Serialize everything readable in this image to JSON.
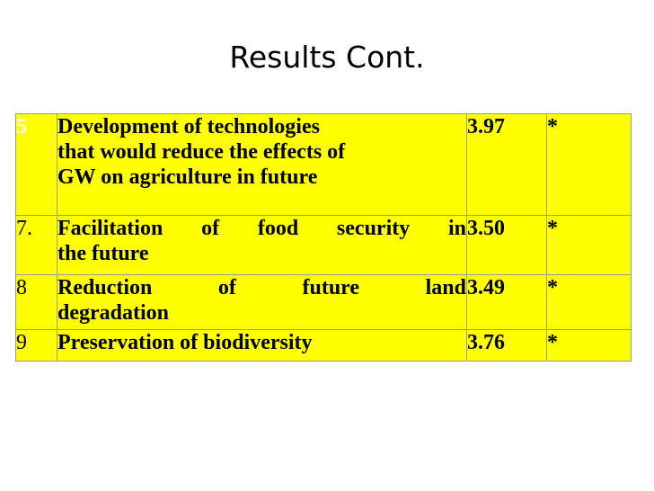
{
  "slide": {
    "title": "Results Cont."
  },
  "table": {
    "rows": [
      {
        "num": "5",
        "lines": [
          "Development of technologies",
          "that would reduce the effects of",
          "GW  on agriculture in future"
        ],
        "value": "3.97",
        "sig": "*"
      },
      {
        "num": "7.",
        "lines": [
          "Facilitation of  food security in",
          "the future"
        ],
        "value": "3.50",
        "sig": "*"
      },
      {
        "num": "8",
        "lines": [
          "Reduction of future land",
          "degradation"
        ],
        "value": "3.49",
        "sig": "*"
      },
      {
        "num": "9",
        "lines": [
          "Preservation of biodiversity"
        ],
        "value": "3.76",
        "sig": "*"
      }
    ]
  },
  "colors": {
    "table_background": "#ffff00",
    "text": "#000000",
    "first_row_number": "#ffffff"
  }
}
